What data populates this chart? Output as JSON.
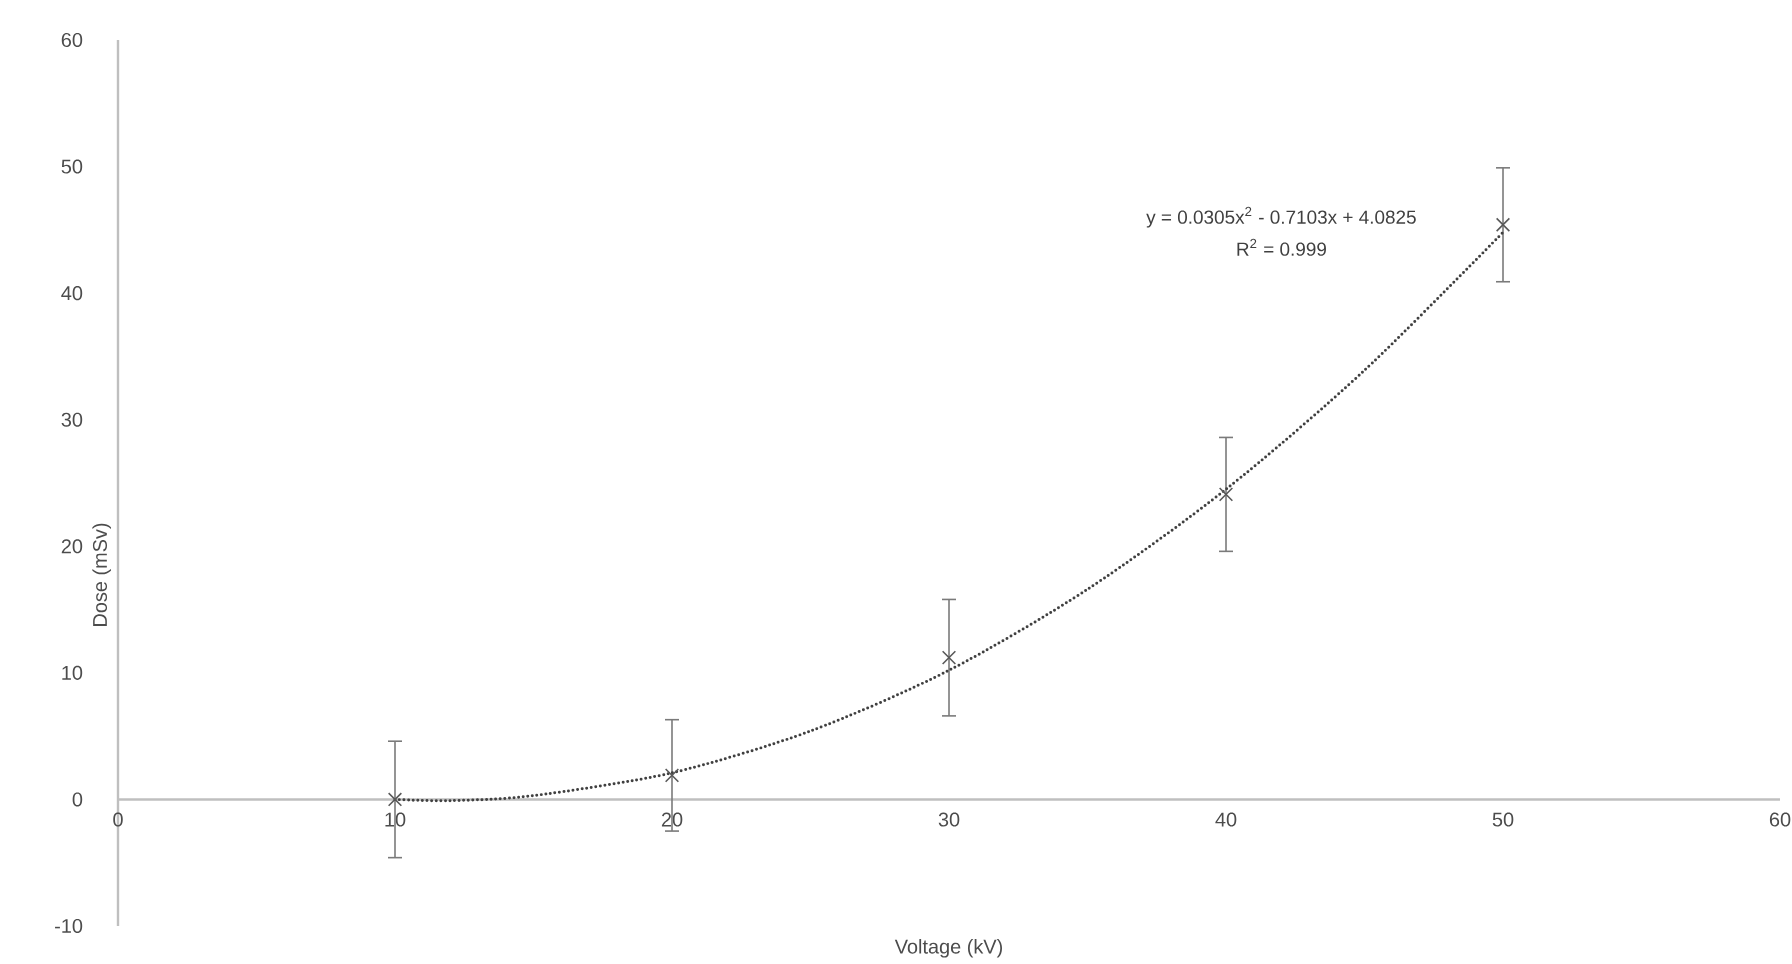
{
  "chart_data": {
    "type": "scatter",
    "xlabel": "Voltage (kV)",
    "ylabel": "Dose (mSv)",
    "xlim": [
      0,
      60
    ],
    "ylim": [
      -10,
      60
    ],
    "xticks": [
      0,
      10,
      20,
      30,
      40,
      50,
      60
    ],
    "yticks": [
      -10,
      0,
      10,
      20,
      30,
      40,
      50,
      60
    ],
    "annotations": [
      "y = 0.0305x$^{2}$ - 0.7103x + 4.0825",
      "R$^{2}$ = 0.999"
    ],
    "series": [
      {
        "type": "scatter",
        "color": "#595959",
        "marker": "cross",
        "x": [
          10,
          20,
          30,
          40,
          50
        ],
        "values": [
          0,
          1.9,
          11.2,
          24.1,
          45.4
        ],
        "errors": [
          4.6,
          4.4,
          4.6,
          4.5,
          4.5
        ]
      },
      {
        "type": "line",
        "color": "#404040",
        "line_style": "dotted",
        "marker": "none",
        "x": [
          10,
          12,
          15,
          20,
          25,
          30,
          35,
          40,
          45,
          50
        ],
        "values": [
          0.0,
          -0.1,
          0.3,
          2.1,
          5.4,
          10.2,
          16.6,
          24.5,
          33.9,
          44.8
        ]
      }
    ]
  }
}
